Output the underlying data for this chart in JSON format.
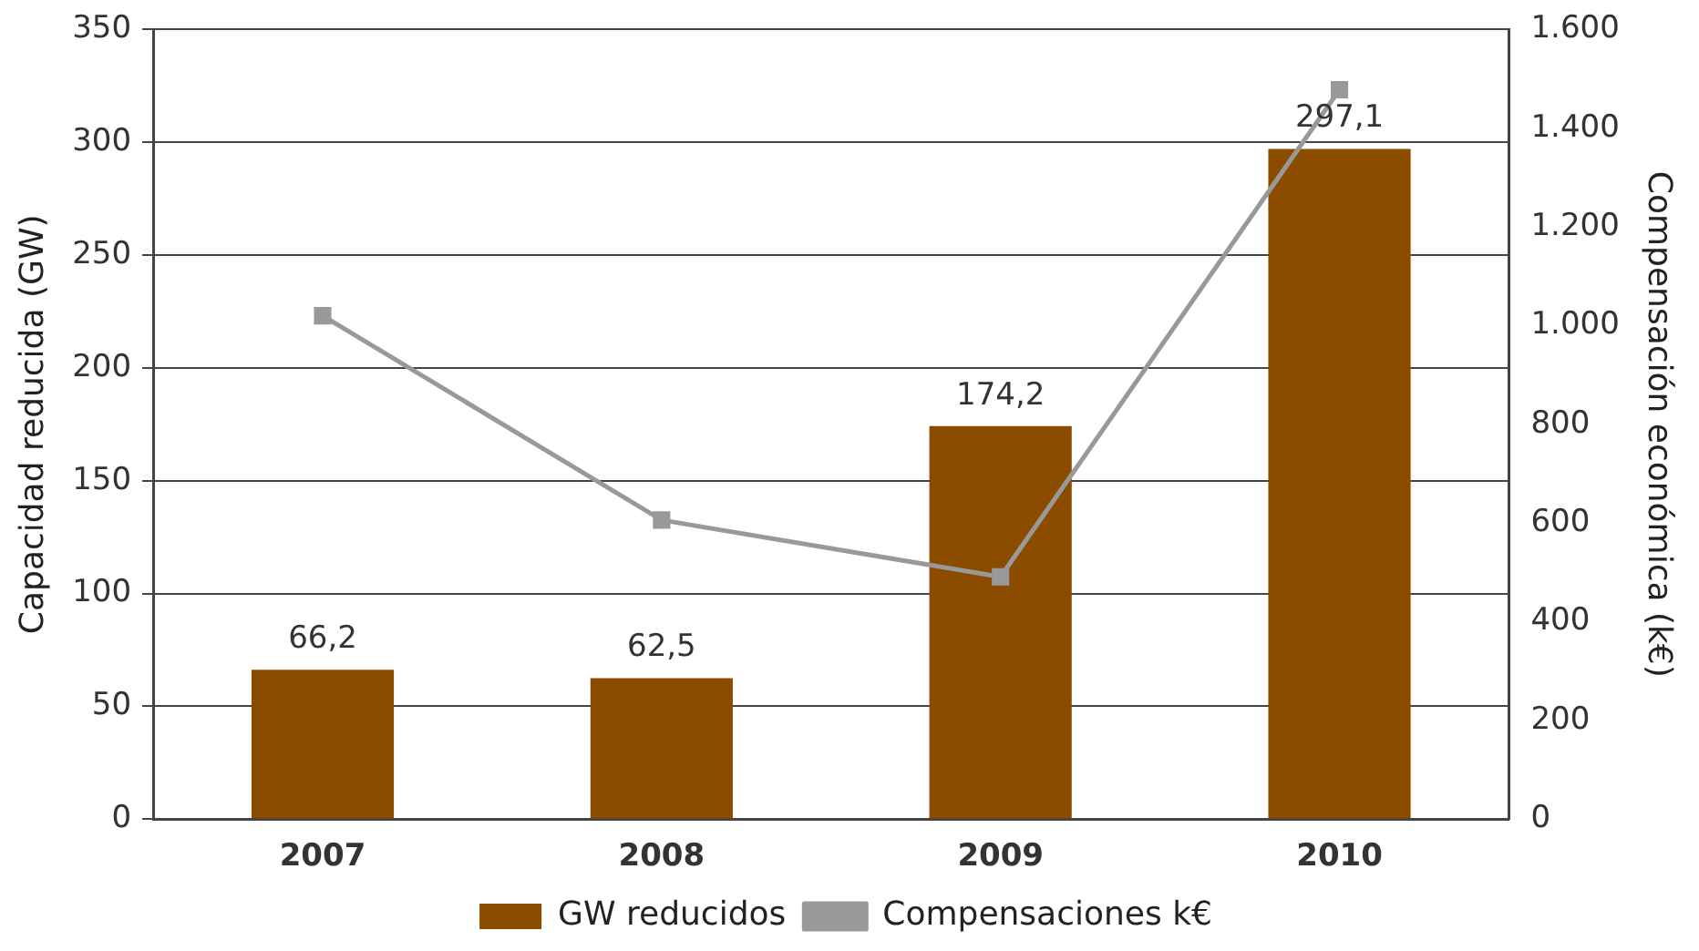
{
  "chart_data": {
    "type": "bar",
    "categories": [
      "2007",
      "2008",
      "2009",
      "2010"
    ],
    "ylabel": "Capacidad reducida (GW)",
    "y2label": "Compensación económica (k€)",
    "ylim": [
      0,
      350
    ],
    "yticks": [
      0,
      50,
      100,
      150,
      200,
      250,
      300,
      350
    ],
    "y2lim": [
      0,
      1600
    ],
    "y2ticks": [
      0,
      200,
      400,
      600,
      800,
      {
        "value": 1000,
        "label": "1.000"
      },
      {
        "value": 1200,
        "label": "1.200"
      },
      {
        "value": 1400,
        "label": "1.400"
      },
      {
        "value": 1600,
        "label": "1.600"
      }
    ],
    "grid": "y",
    "legend": "bottom",
    "series": [
      {
        "name": "GW reducidos",
        "color": "#8b4c00",
        "values": [
          66.2,
          62.5,
          174.2,
          297.1
        ],
        "value_labels": [
          "66,2",
          "62,5",
          "174,2",
          "297,1"
        ]
      },
      {
        "name": "Compensaciones k€",
        "type": "line",
        "axis": "y2",
        "color": "#999999",
        "marker": "square",
        "values": [
          1020,
          606,
          491,
          1478
        ]
      }
    ]
  }
}
